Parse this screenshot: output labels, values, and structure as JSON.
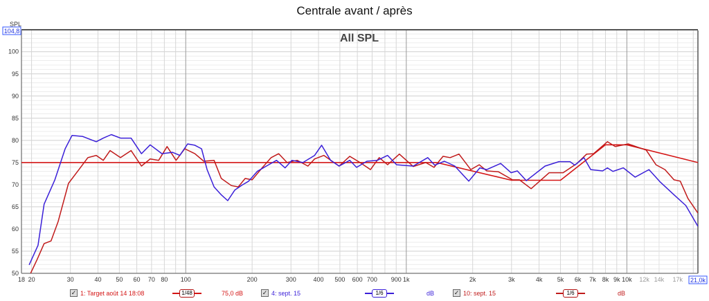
{
  "title": "Centrale avant / après",
  "chart_data": {
    "type": "line",
    "title": "All SPL",
    "ylabel": "SPL",
    "y_cursor_readout": "104,8",
    "x_cursor_readout": "21,0k",
    "xscale": "log",
    "xlim": [
      18,
      21000
    ],
    "ylim": [
      50,
      104.8
    ],
    "grid": true,
    "yticks": [
      "50",
      "55",
      "60",
      "65",
      "70",
      "75",
      "80",
      "85",
      "90",
      "95",
      "100"
    ],
    "xticks": [
      {
        "f": 18,
        "label": "18"
      },
      {
        "f": 20,
        "label": "20"
      },
      {
        "f": 30,
        "label": "30"
      },
      {
        "f": 40,
        "label": "40"
      },
      {
        "f": 50,
        "label": "50"
      },
      {
        "f": 60,
        "label": "60"
      },
      {
        "f": 70,
        "label": "70"
      },
      {
        "f": 80,
        "label": "80"
      },
      {
        "f": 100,
        "label": "100"
      },
      {
        "f": 200,
        "label": "200"
      },
      {
        "f": 300,
        "label": "300"
      },
      {
        "f": 400,
        "label": "400"
      },
      {
        "f": 500,
        "label": "500"
      },
      {
        "f": 600,
        "label": "600"
      },
      {
        "f": 700,
        "label": "700"
      },
      {
        "f": 900,
        "label": "900"
      },
      {
        "f": 1000,
        "label": "1k"
      },
      {
        "f": 2000,
        "label": "2k"
      },
      {
        "f": 3000,
        "label": "3k"
      },
      {
        "f": 4000,
        "label": "4k"
      },
      {
        "f": 5000,
        "label": "5k"
      },
      {
        "f": 6000,
        "label": "6k"
      },
      {
        "f": 7000,
        "label": "7k"
      },
      {
        "f": 8000,
        "label": "8k"
      },
      {
        "f": 9000,
        "label": "9k"
      },
      {
        "f": 10000,
        "label": "10k"
      },
      {
        "f": 12000,
        "label": "12k",
        "dim": true
      },
      {
        "f": 14000,
        "label": "14k",
        "dim": true
      },
      {
        "f": 17000,
        "label": "17k",
        "dim": true
      }
    ],
    "series": [
      {
        "name": "1: Target août 14 18:08",
        "smoothing": "1/48",
        "value": "75,0 dB",
        "color": "#d41414",
        "width": 1.6,
        "points": [
          [
            18,
            75
          ],
          [
            1370,
            75
          ],
          [
            3000,
            71
          ],
          [
            5000,
            71
          ],
          [
            8000,
            79
          ],
          [
            10000,
            79
          ],
          [
            21000,
            75
          ]
        ]
      },
      {
        "name": "4: sept. 15",
        "smoothing": "1/6",
        "value": "dB",
        "color": "#3a1fd8",
        "width": 1.5,
        "points": [
          [
            19.5,
            51.9
          ],
          [
            21.4,
            56.3
          ],
          [
            22.8,
            65.6
          ],
          [
            25.5,
            71.1
          ],
          [
            28.4,
            78.1
          ],
          [
            30.5,
            81.1
          ],
          [
            34,
            80.9
          ],
          [
            39.3,
            79.7
          ],
          [
            42.3,
            80.5
          ],
          [
            46,
            81.3
          ],
          [
            50.6,
            80.5
          ],
          [
            56.5,
            80.5
          ],
          [
            63,
            77
          ],
          [
            69,
            79
          ],
          [
            78,
            77
          ],
          [
            87,
            77.3
          ],
          [
            94,
            76.6
          ],
          [
            102,
            79.2
          ],
          [
            110,
            78.9
          ],
          [
            118,
            78.1
          ],
          [
            125,
            73.4
          ],
          [
            134.5,
            69.5
          ],
          [
            145,
            67.7
          ],
          [
            155,
            66.4
          ],
          [
            167,
            68.8
          ],
          [
            180,
            69.9
          ],
          [
            193,
            70.8
          ],
          [
            211,
            73
          ],
          [
            232,
            74.2
          ],
          [
            258,
            75.5
          ],
          [
            282,
            73.8
          ],
          [
            303,
            75.5
          ],
          [
            340,
            75
          ],
          [
            384,
            76.6
          ],
          [
            413,
            78.9
          ],
          [
            454,
            75.5
          ],
          [
            496,
            74.2
          ],
          [
            554,
            75.5
          ],
          [
            595,
            73.9
          ],
          [
            663,
            75.3
          ],
          [
            740,
            75.5
          ],
          [
            823,
            76.6
          ],
          [
            904,
            74.5
          ],
          [
            1075,
            74.2
          ],
          [
            1251,
            76.1
          ],
          [
            1345,
            74.4
          ],
          [
            1489,
            75.3
          ],
          [
            1660,
            74.2
          ],
          [
            1919,
            70.8
          ],
          [
            2154,
            73.8
          ],
          [
            2316,
            73.4
          ],
          [
            2678,
            74.8
          ],
          [
            2985,
            72.7
          ],
          [
            3187,
            73.1
          ],
          [
            3501,
            70.9
          ],
          [
            4256,
            74.2
          ],
          [
            4920,
            75.2
          ],
          [
            5523,
            75.2
          ],
          [
            5810,
            74.4
          ],
          [
            6385,
            76.1
          ],
          [
            6859,
            73.4
          ],
          [
            7762,
            73.1
          ],
          [
            8166,
            73.8
          ],
          [
            8650,
            73
          ],
          [
            9642,
            73.8
          ],
          [
            10900,
            71.7
          ],
          [
            12600,
            73.4
          ],
          [
            14170,
            70.6
          ],
          [
            16370,
            67.7
          ],
          [
            18500,
            65.3
          ],
          [
            21000,
            60.6
          ]
        ]
      },
      {
        "name": "10: sept. 15",
        "smoothing": "1/6",
        "value": "dB",
        "color": "#c01a1a",
        "width": 1.5,
        "points": [
          [
            19.8,
            50
          ],
          [
            21.2,
            53.1
          ],
          [
            22.8,
            56.7
          ],
          [
            24.5,
            57.3
          ],
          [
            26.4,
            61.7
          ],
          [
            29.4,
            70.3
          ],
          [
            32.8,
            73.4
          ],
          [
            36,
            76.1
          ],
          [
            39.3,
            76.6
          ],
          [
            42.3,
            75.5
          ],
          [
            45.4,
            77.7
          ],
          [
            50.6,
            76.1
          ],
          [
            56.5,
            77.7
          ],
          [
            63,
            74.2
          ],
          [
            69,
            75.8
          ],
          [
            75.4,
            75.5
          ],
          [
            82.3,
            78.6
          ],
          [
            90.4,
            75.5
          ],
          [
            99,
            78.1
          ],
          [
            110,
            77
          ],
          [
            120.7,
            75.3
          ],
          [
            134.5,
            75.5
          ],
          [
            145,
            71.4
          ],
          [
            161,
            69.8
          ],
          [
            173,
            69.5
          ],
          [
            186,
            71.4
          ],
          [
            200,
            71.1
          ],
          [
            223,
            73.9
          ],
          [
            244,
            76.1
          ],
          [
            264,
            77
          ],
          [
            288,
            75
          ],
          [
            320,
            75.5
          ],
          [
            358,
            74.2
          ],
          [
            384,
            75.8
          ],
          [
            423,
            76.6
          ],
          [
            461,
            75.3
          ],
          [
            496,
            74.2
          ],
          [
            554,
            76.4
          ],
          [
            617,
            75
          ],
          [
            688,
            73.4
          ],
          [
            754,
            76.1
          ],
          [
            823,
            74.5
          ],
          [
            930,
            76.9
          ],
          [
            1075,
            74.1
          ],
          [
            1225,
            75
          ],
          [
            1336,
            73.9
          ],
          [
            1468,
            76.4
          ],
          [
            1580,
            76.1
          ],
          [
            1734,
            76.9
          ],
          [
            1960,
            73.4
          ],
          [
            2140,
            74.5
          ],
          [
            2316,
            73.1
          ],
          [
            2620,
            72.9
          ],
          [
            3030,
            71.1
          ],
          [
            3257,
            71.1
          ],
          [
            3682,
            69.1
          ],
          [
            4446,
            72.7
          ],
          [
            5140,
            72.7
          ],
          [
            5940,
            74.8
          ],
          [
            6574,
            76.9
          ],
          [
            7064,
            77
          ],
          [
            8166,
            79.7
          ],
          [
            8850,
            78.6
          ],
          [
            10140,
            79.2
          ],
          [
            12240,
            77.8
          ],
          [
            13550,
            74.5
          ],
          [
            14890,
            73.4
          ],
          [
            16370,
            71.1
          ],
          [
            17460,
            70.8
          ],
          [
            18930,
            66.9
          ],
          [
            21000,
            63.6
          ]
        ]
      }
    ]
  }
}
